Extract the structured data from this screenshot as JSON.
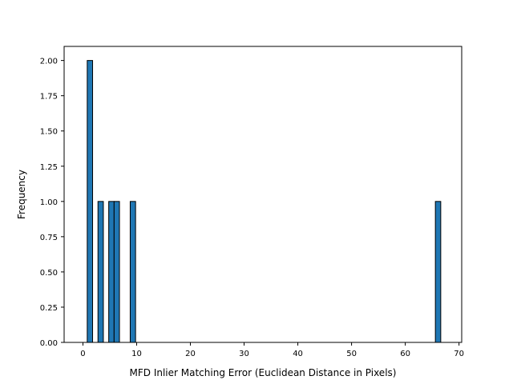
{
  "chart_data": {
    "type": "bar",
    "title": "",
    "xlabel": "MFD Inlier Matching Error (Euclidean Distance in Pixels)",
    "ylabel": "Frequency",
    "xlim": [
      -3.5,
      70.5
    ],
    "ylim": [
      0,
      2.1
    ],
    "xticks": [
      0,
      10,
      20,
      30,
      40,
      50,
      60,
      70
    ],
    "xtick_labels": [
      "0",
      "10",
      "20",
      "30",
      "40",
      "50",
      "60",
      "70"
    ],
    "yticks": [
      0,
      0.25,
      0.5,
      0.75,
      1.0,
      1.25,
      1.5,
      1.75,
      2.0
    ],
    "ytick_labels": [
      "0.00",
      "0.25",
      "0.50",
      "0.75",
      "1.00",
      "1.25",
      "1.50",
      "1.75",
      "2.00"
    ],
    "bin_width": 1.0,
    "bins": [
      {
        "x0": 0.8,
        "x1": 1.8,
        "count": 2
      },
      {
        "x0": 2.8,
        "x1": 3.8,
        "count": 1
      },
      {
        "x0": 4.8,
        "x1": 5.8,
        "count": 1
      },
      {
        "x0": 5.8,
        "x1": 6.8,
        "count": 1
      },
      {
        "x0": 8.8,
        "x1": 9.8,
        "count": 1
      },
      {
        "x0": 65.6,
        "x1": 66.6,
        "count": 1
      }
    ],
    "grid": false,
    "legend": "none",
    "colors": {
      "bar_fill": "#1f77b4",
      "bar_edge": "#000000"
    }
  }
}
